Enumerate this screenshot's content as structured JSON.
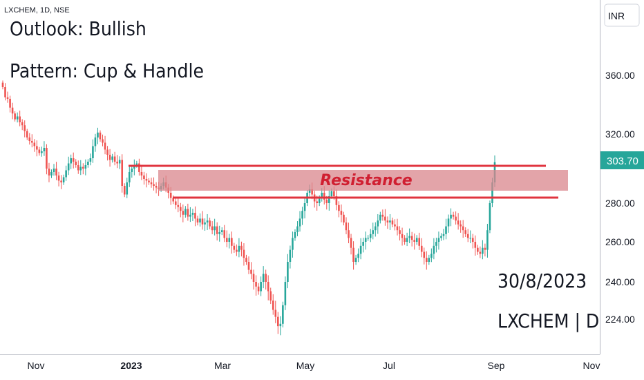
{
  "chart_data": {
    "type": "candlestick",
    "symbol_line": "LXCHEM, 1D, NSE",
    "currency": "INR",
    "current_price": "303.70",
    "y_ticks": [
      "360.00",
      "320.00",
      "280.00",
      "260.00",
      "240.00",
      "224.00"
    ],
    "x_ticks": [
      "Nov",
      "2023",
      "Mar",
      "May",
      "Jul",
      "Sep",
      "Nov"
    ],
    "notes": [
      "Outlook: Bullish",
      "Pattern: Cup & Handle"
    ],
    "zone_label": "Resistance",
    "date_label": "30/8/2023",
    "title_label": "LXCHEM | D",
    "resistance_zone": [
      291,
      301
    ],
    "resistance_lines": [
      302,
      285
    ],
    "colors": {
      "up": "#26a69a",
      "down": "#ef5350",
      "line": "#e0343f",
      "zone": "#d9868c"
    },
    "candles_close": [
      352,
      345,
      344,
      338,
      334,
      330,
      332,
      328,
      326,
      322,
      318,
      316,
      315,
      313,
      311,
      309,
      310,
      312,
      300,
      296,
      298,
      300,
      296,
      293,
      292,
      295,
      299,
      303,
      306,
      304,
      302,
      299,
      301,
      300,
      302,
      304,
      306,
      313,
      318,
      321,
      317,
      315,
      311,
      308,
      305,
      307,
      304,
      303,
      305,
      290,
      285,
      292,
      298,
      300,
      302,
      303,
      298,
      296,
      294,
      293,
      292,
      291,
      290,
      289,
      288,
      290,
      292,
      289,
      286,
      283,
      281,
      279,
      278,
      276,
      274,
      277,
      273,
      274,
      275,
      272,
      270,
      272,
      269,
      270,
      271,
      268,
      266,
      268,
      264,
      265,
      266,
      262,
      260,
      262,
      258,
      256,
      255,
      258,
      256,
      252,
      250,
      246,
      244,
      240,
      238,
      236,
      240,
      244,
      240,
      236,
      232,
      228,
      225,
      221,
      222,
      230,
      240,
      250,
      256,
      262,
      265,
      268,
      272,
      276,
      280,
      286,
      288,
      285,
      281,
      280,
      283,
      286,
      282,
      280,
      284,
      287,
      284,
      279,
      276,
      274,
      270,
      266,
      262,
      257,
      250,
      252,
      254,
      258,
      260,
      262,
      262,
      264,
      266,
      268,
      271,
      274,
      273,
      271,
      270,
      271,
      269,
      268,
      266,
      264,
      262,
      260,
      262,
      263,
      261,
      260,
      262,
      258,
      255,
      252,
      250,
      252,
      254,
      258,
      260,
      262,
      263,
      264,
      268,
      272,
      274,
      273,
      271,
      269,
      268,
      266,
      264,
      262,
      262,
      260,
      257,
      255,
      254,
      257,
      256,
      266,
      280,
      292,
      303.7
    ]
  }
}
